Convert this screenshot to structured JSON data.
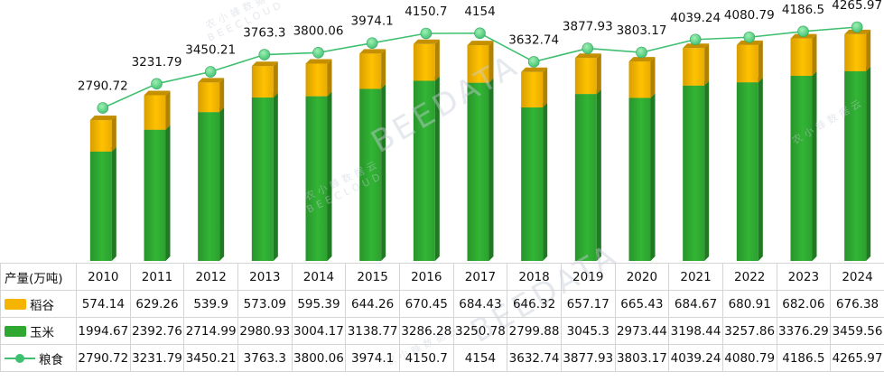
{
  "chart_data": {
    "type": "bar",
    "stacked": true,
    "categories": [
      "2010",
      "2011",
      "2012",
      "2013",
      "2014",
      "2015",
      "2016",
      "2017",
      "2018",
      "2019",
      "2020",
      "2021",
      "2022",
      "2023",
      "2024"
    ],
    "series": [
      {
        "name": "稻谷",
        "kind": "bar",
        "color": "#f5b400",
        "values": [
          574.14,
          629.26,
          539.9,
          573.09,
          595.39,
          644.26,
          670.45,
          684.43,
          646.32,
          657.17,
          665.43,
          684.67,
          680.91,
          682.06,
          676.38
        ]
      },
      {
        "name": "玉米",
        "kind": "bar",
        "color": "#2ea831",
        "values": [
          1994.67,
          2392.76,
          2714.99,
          2980.93,
          3004.17,
          3138.77,
          3286.28,
          3250.78,
          2799.88,
          3045.3,
          2973.44,
          3198.44,
          3257.86,
          3376.29,
          3459.56
        ]
      },
      {
        "name": "粮食",
        "kind": "line",
        "color": "#3fc070",
        "values": [
          2790.72,
          3231.79,
          3450.21,
          3763.3,
          3800.06,
          3974.1,
          4150.7,
          4154,
          3632.74,
          3877.93,
          3803.17,
          4039.24,
          4080.79,
          4186.5,
          4265.97
        ],
        "labels": [
          "2790.72",
          "3231.79",
          "3450.21",
          "3763.3",
          "3800.06",
          "3974.1",
          "4150.7",
          "4154",
          "3632.74",
          "3877.93",
          "3803.17",
          "4039.24",
          "4080.79",
          "4186.5",
          "4265.97"
        ]
      }
    ],
    "table": {
      "header_label": "产量(万吨)",
      "rows": [
        {
          "label": "稻谷",
          "values": [
            "574.14",
            "629.26",
            "539.9",
            "573.09",
            "595.39",
            "644.26",
            "670.45",
            "684.43",
            "646.32",
            "657.17",
            "665.43",
            "684.67",
            "680.91",
            "682.06",
            "676.38"
          ]
        },
        {
          "label": "玉米",
          "values": [
            "1994.67",
            "2392.76",
            "2714.99",
            "2980.93",
            "3004.17",
            "3138.77",
            "3286.28",
            "3250.78",
            "2799.88",
            "3045.3",
            "2973.44",
            "3198.44",
            "3257.86",
            "3376.29",
            "3459.56"
          ]
        },
        {
          "label": "粮食",
          "values": [
            "2790.72",
            "3231.79",
            "3450.21",
            "3763.3",
            "3800.06",
            "3974.1",
            "4150.7",
            "4154",
            "3632.74",
            "3877.93",
            "3803.17",
            "4039.24",
            "4080.79",
            "4186.5",
            "4265.97"
          ]
        }
      ]
    },
    "ylim": [
      0,
      4300
    ],
    "grid": false
  },
  "watermark": {
    "brand": "BEEDATA",
    "sub": "BEECLOUD",
    "cn": "农小蜂数据云"
  }
}
